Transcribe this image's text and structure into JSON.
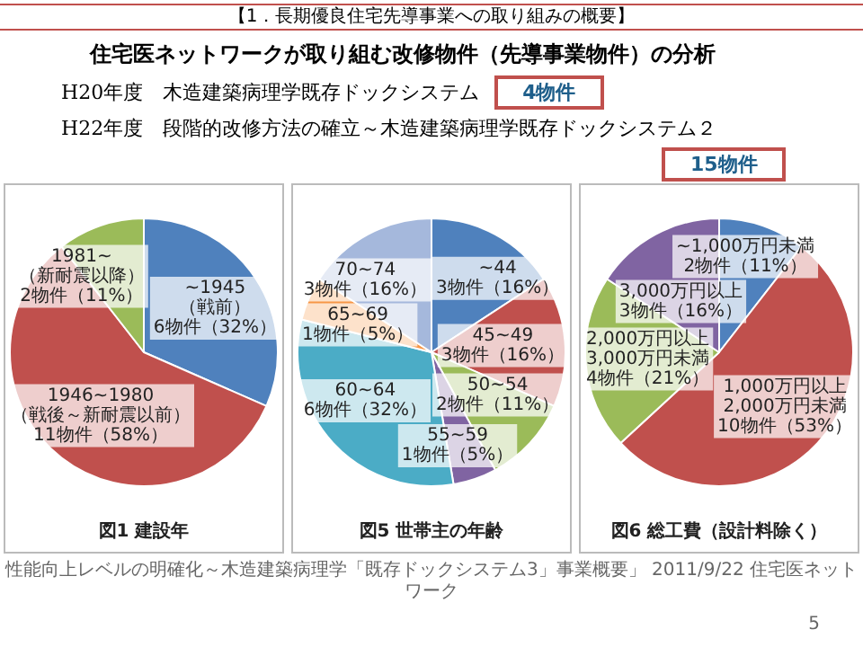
{
  "chart_data": [
    {
      "type": "pie",
      "title": "図1 建設年",
      "categories": [
        "~1945\n（戦前）",
        "1946~1980\n（戦後～新耐震以前）",
        "1981~\n（新耐震以降）"
      ],
      "values": [
        6,
        11,
        2
      ],
      "colors": [
        "#4f81bd",
        "#c0504d",
        "#9bbb59"
      ],
      "value_labels": [
        "6物件（32%）",
        "11物件（58%）",
        "2物件（11%）"
      ],
      "legend": false,
      "annotations": [
        "【1．長期優良住宅先導事業への取り組みの概要】",
        "住宅医ネットワークが取り組む改修物件（先導事業物件）の分析",
        "H20年度　木造建築病理学既存ドックシステム",
        "4物件",
        "H22年度　段階的改修方法の確立～木造建築病理学既存ドックシステム２",
        "15物件"
      ]
    },
    {
      "type": "pie",
      "title": "図5 世帯主の年齢",
      "categories": [
        "~44",
        "45~49",
        "50~54",
        "55~59",
        "60~64",
        "65~69",
        "70~74"
      ],
      "values": [
        3,
        3,
        2,
        1,
        6,
        1,
        3
      ],
      "colors": [
        "#4f81bd",
        "#c0504d",
        "#9bbb59",
        "#8064a2",
        "#4bacc6",
        "#f79646",
        "#a5b8dc"
      ],
      "value_labels": [
        "3物件（16%）",
        "3物件（16%）",
        "2物件（11%）",
        "1物件（5%）",
        "6物件（32%）",
        "1物件（5%）",
        "3物件（16%）"
      ],
      "legend": false
    },
    {
      "type": "pie",
      "title": "図6 総工費（設計料除く）",
      "categories": [
        "~1,000万円未満",
        "1,000万円以上\n2,000万円未満",
        "2,000万円以上\n3,000万円未満",
        "3,000万円以上"
      ],
      "values": [
        2,
        10,
        4,
        3
      ],
      "colors": [
        "#4f81bd",
        "#c0504d",
        "#9bbb59",
        "#8064a2"
      ],
      "value_labels": [
        "2物件（11%）",
        "10物件（53%）",
        "4物件（21%）",
        "3物件（16%）"
      ],
      "legend": false,
      "annotations": [
        "性能向上レベルの明確化～木造建築病理学「既存ドックシステム3」事業概要」 2011/9/22 住宅医ネットワーク",
        "5"
      ]
    }
  ]
}
